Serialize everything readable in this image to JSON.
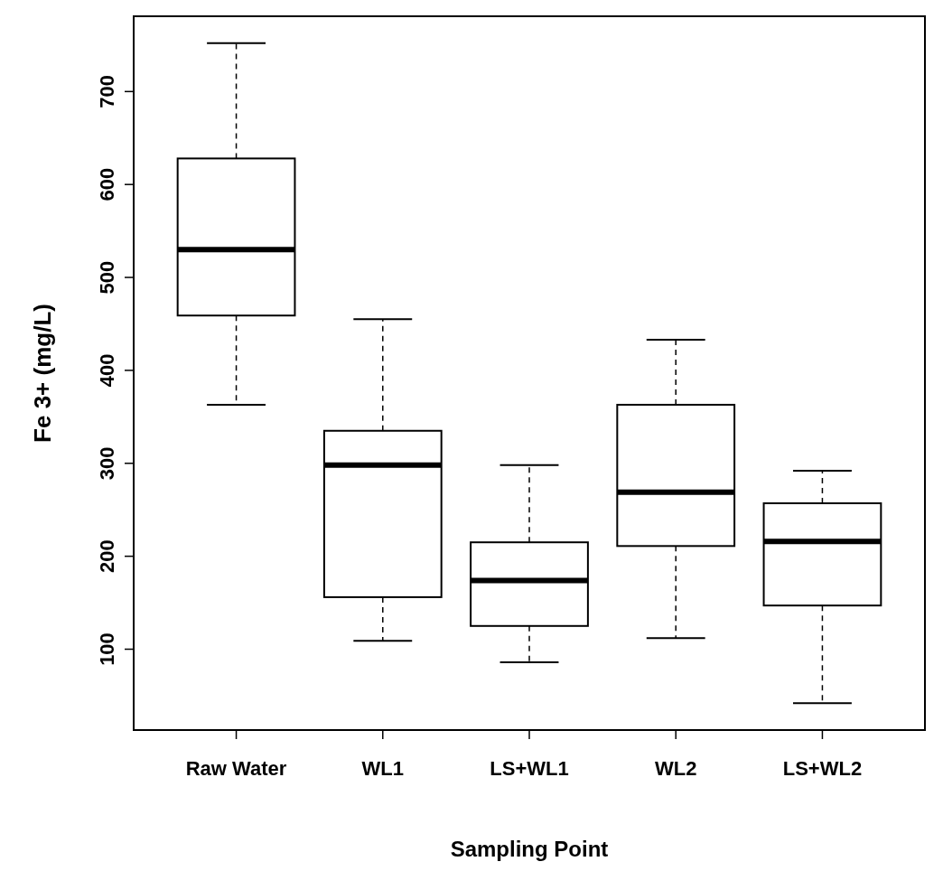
{
  "chart_data": {
    "type": "box",
    "xlabel": "Sampling Point",
    "ylabel": "Fe 3+ (mg/L)",
    "categories": [
      "Raw Water",
      "WL1",
      "LS+WL1",
      "WL2",
      "LS+WL2"
    ],
    "boxes": [
      {
        "low": 363,
        "q1": 459,
        "median": 530,
        "q3": 628,
        "high": 752
      },
      {
        "low": 109,
        "q1": 156,
        "median": 298,
        "q3": 335,
        "high": 455
      },
      {
        "low": 86,
        "q1": 125,
        "median": 174,
        "q3": 215,
        "high": 298
      },
      {
        "low": 112,
        "q1": 211,
        "median": 269,
        "q3": 363,
        "high": 433
      },
      {
        "low": 42,
        "q1": 147,
        "median": 216,
        "q3": 257,
        "high": 292
      }
    ],
    "ylim": [
      13,
      781
    ],
    "yticks": [
      100,
      200,
      300,
      400,
      500,
      600,
      700
    ],
    "grid": false
  }
}
